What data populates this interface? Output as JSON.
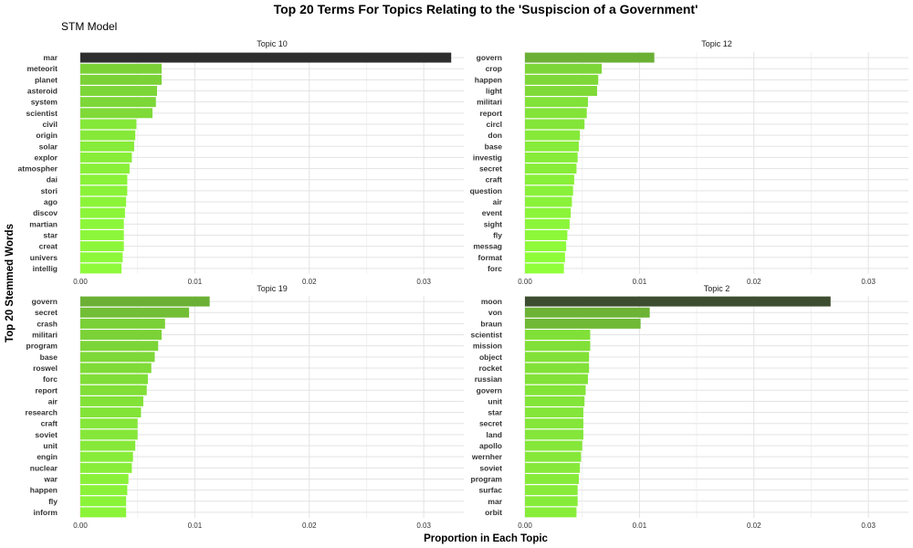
{
  "chart_data": {
    "type": "bar",
    "orientation": "horizontal",
    "title": "Top 20 Terms For Topics Relating to the 'Suspiscion of a Government'",
    "subtitle": "STM Model",
    "xlabel": "Proportion in Each Topic",
    "ylabel": "Top 20 Stemmed Words",
    "xlim": [
      0,
      0.0335
    ],
    "x_ticks": [
      0.0,
      0.01,
      0.02,
      0.03
    ],
    "x_tick_labels": [
      "0.00",
      "0.01",
      "0.02",
      "0.03"
    ],
    "grid": true,
    "legend": "none",
    "color_low": "#90ff3a",
    "color_high": "#2e2e2e",
    "panels": [
      {
        "label": "Topic 10",
        "categories": [
          "mar",
          "meteorit",
          "planet",
          "asteroid",
          "system",
          "scientist",
          "civil",
          "origin",
          "solar",
          "explor",
          "atmospher",
          "dai",
          "stori",
          "ago",
          "discov",
          "martian",
          "star",
          "creat",
          "univers",
          "intellig"
        ],
        "values": [
          0.0324,
          0.0071,
          0.0071,
          0.0067,
          0.0066,
          0.0063,
          0.0049,
          0.0048,
          0.0047,
          0.0045,
          0.0043,
          0.0041,
          0.0041,
          0.004,
          0.0039,
          0.0038,
          0.0038,
          0.0038,
          0.0037,
          0.0036
        ]
      },
      {
        "label": "Topic 12",
        "categories": [
          "govern",
          "crop",
          "happen",
          "light",
          "militari",
          "report",
          "circl",
          "don",
          "base",
          "investig",
          "secret",
          "craft",
          "question",
          "air",
          "event",
          "sight",
          "fly",
          "messag",
          "format",
          "forc"
        ],
        "values": [
          0.0113,
          0.0067,
          0.0064,
          0.0063,
          0.0055,
          0.0054,
          0.0052,
          0.0048,
          0.0047,
          0.0046,
          0.0045,
          0.0043,
          0.0042,
          0.0041,
          0.004,
          0.0039,
          0.0037,
          0.0036,
          0.0035,
          0.0034
        ]
      },
      {
        "label": "Topic 19",
        "categories": [
          "govern",
          "secret",
          "crash",
          "militari",
          "program",
          "base",
          "roswel",
          "forc",
          "report",
          "air",
          "research",
          "craft",
          "soviet",
          "unit",
          "engin",
          "nuclear",
          "war",
          "happen",
          "fly",
          "inform"
        ],
        "values": [
          0.0113,
          0.0095,
          0.0074,
          0.0071,
          0.0068,
          0.0065,
          0.0062,
          0.0059,
          0.0058,
          0.0055,
          0.0053,
          0.005,
          0.005,
          0.0048,
          0.0046,
          0.0045,
          0.0042,
          0.0041,
          0.004,
          0.004
        ]
      },
      {
        "label": "Topic 2",
        "categories": [
          "moon",
          "von",
          "braun",
          "scientist",
          "mission",
          "object",
          "rocket",
          "russian",
          "govern",
          "unit",
          "star",
          "secret",
          "land",
          "apollo",
          "wernher",
          "soviet",
          "program",
          "surfac",
          "mar",
          "orbit"
        ],
        "values": [
          0.0267,
          0.0109,
          0.0101,
          0.0057,
          0.0057,
          0.0056,
          0.0056,
          0.0055,
          0.0053,
          0.0052,
          0.0051,
          0.0051,
          0.0051,
          0.005,
          0.0049,
          0.0048,
          0.0047,
          0.0046,
          0.0046,
          0.0045
        ]
      }
    ]
  }
}
